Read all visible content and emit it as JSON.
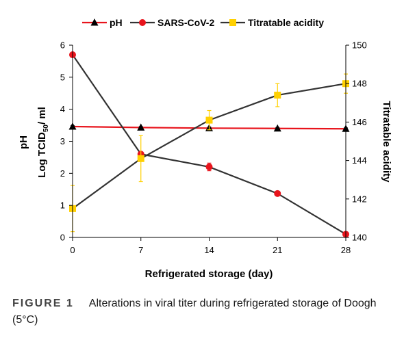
{
  "chart_data": {
    "type": "line",
    "xlabel": "Refrigerated storage (day)",
    "x_ticks": [
      "0",
      "7",
      "14",
      "21",
      "28"
    ],
    "xlim": [
      0,
      28
    ],
    "x": [
      0,
      7,
      14,
      21,
      28
    ],
    "left_axis": {
      "label_outer": "pH",
      "label_inner": "Log TCID50/ ml",
      "label_inner_main": "Log TCID",
      "label_inner_sub": "50",
      "label_inner_tail": "/ ml",
      "ylim": [
        0,
        6
      ],
      "ticks": [
        "0",
        "1",
        "2",
        "3",
        "4",
        "5",
        "6"
      ]
    },
    "right_axis": {
      "label": "Titratable acidity",
      "ylim": [
        140,
        150
      ],
      "ticks": [
        "140",
        "142",
        "144",
        "146",
        "148",
        "150"
      ]
    },
    "series": [
      {
        "name": "pH",
        "axis": "left",
        "values": [
          3.46,
          3.43,
          3.41,
          3.4,
          3.39
        ],
        "errors": [
          0.03,
          0.03,
          0.03,
          0.03,
          0.03
        ],
        "line_color": "#e8141c",
        "marker": "triangle",
        "marker_color": "#000000",
        "error_color": "#333333"
      },
      {
        "name": "SARS-CoV-2",
        "axis": "left",
        "values": [
          5.7,
          2.6,
          2.2,
          1.37,
          0.1
        ],
        "errors": [
          0.05,
          0.05,
          0.12,
          0.07,
          0.05
        ],
        "line_color": "#333333",
        "marker": "circle",
        "marker_color": "#e8141c",
        "error_color": "#e8141c"
      },
      {
        "name": "Titratable acidity",
        "axis": "right",
        "values": [
          141.5,
          144.1,
          146.1,
          147.4,
          148.0
        ],
        "errors": [
          1.2,
          1.2,
          0.5,
          0.6,
          0.5
        ],
        "line_color": "#333333",
        "marker": "square",
        "marker_color": "#ffd000",
        "error_color": "#ffd000"
      }
    ],
    "legend_position": "top"
  },
  "caption": {
    "label": "FIGURE 1",
    "text": "Alterations in viral titer during refrigerated storage of Doogh (5°C)"
  }
}
